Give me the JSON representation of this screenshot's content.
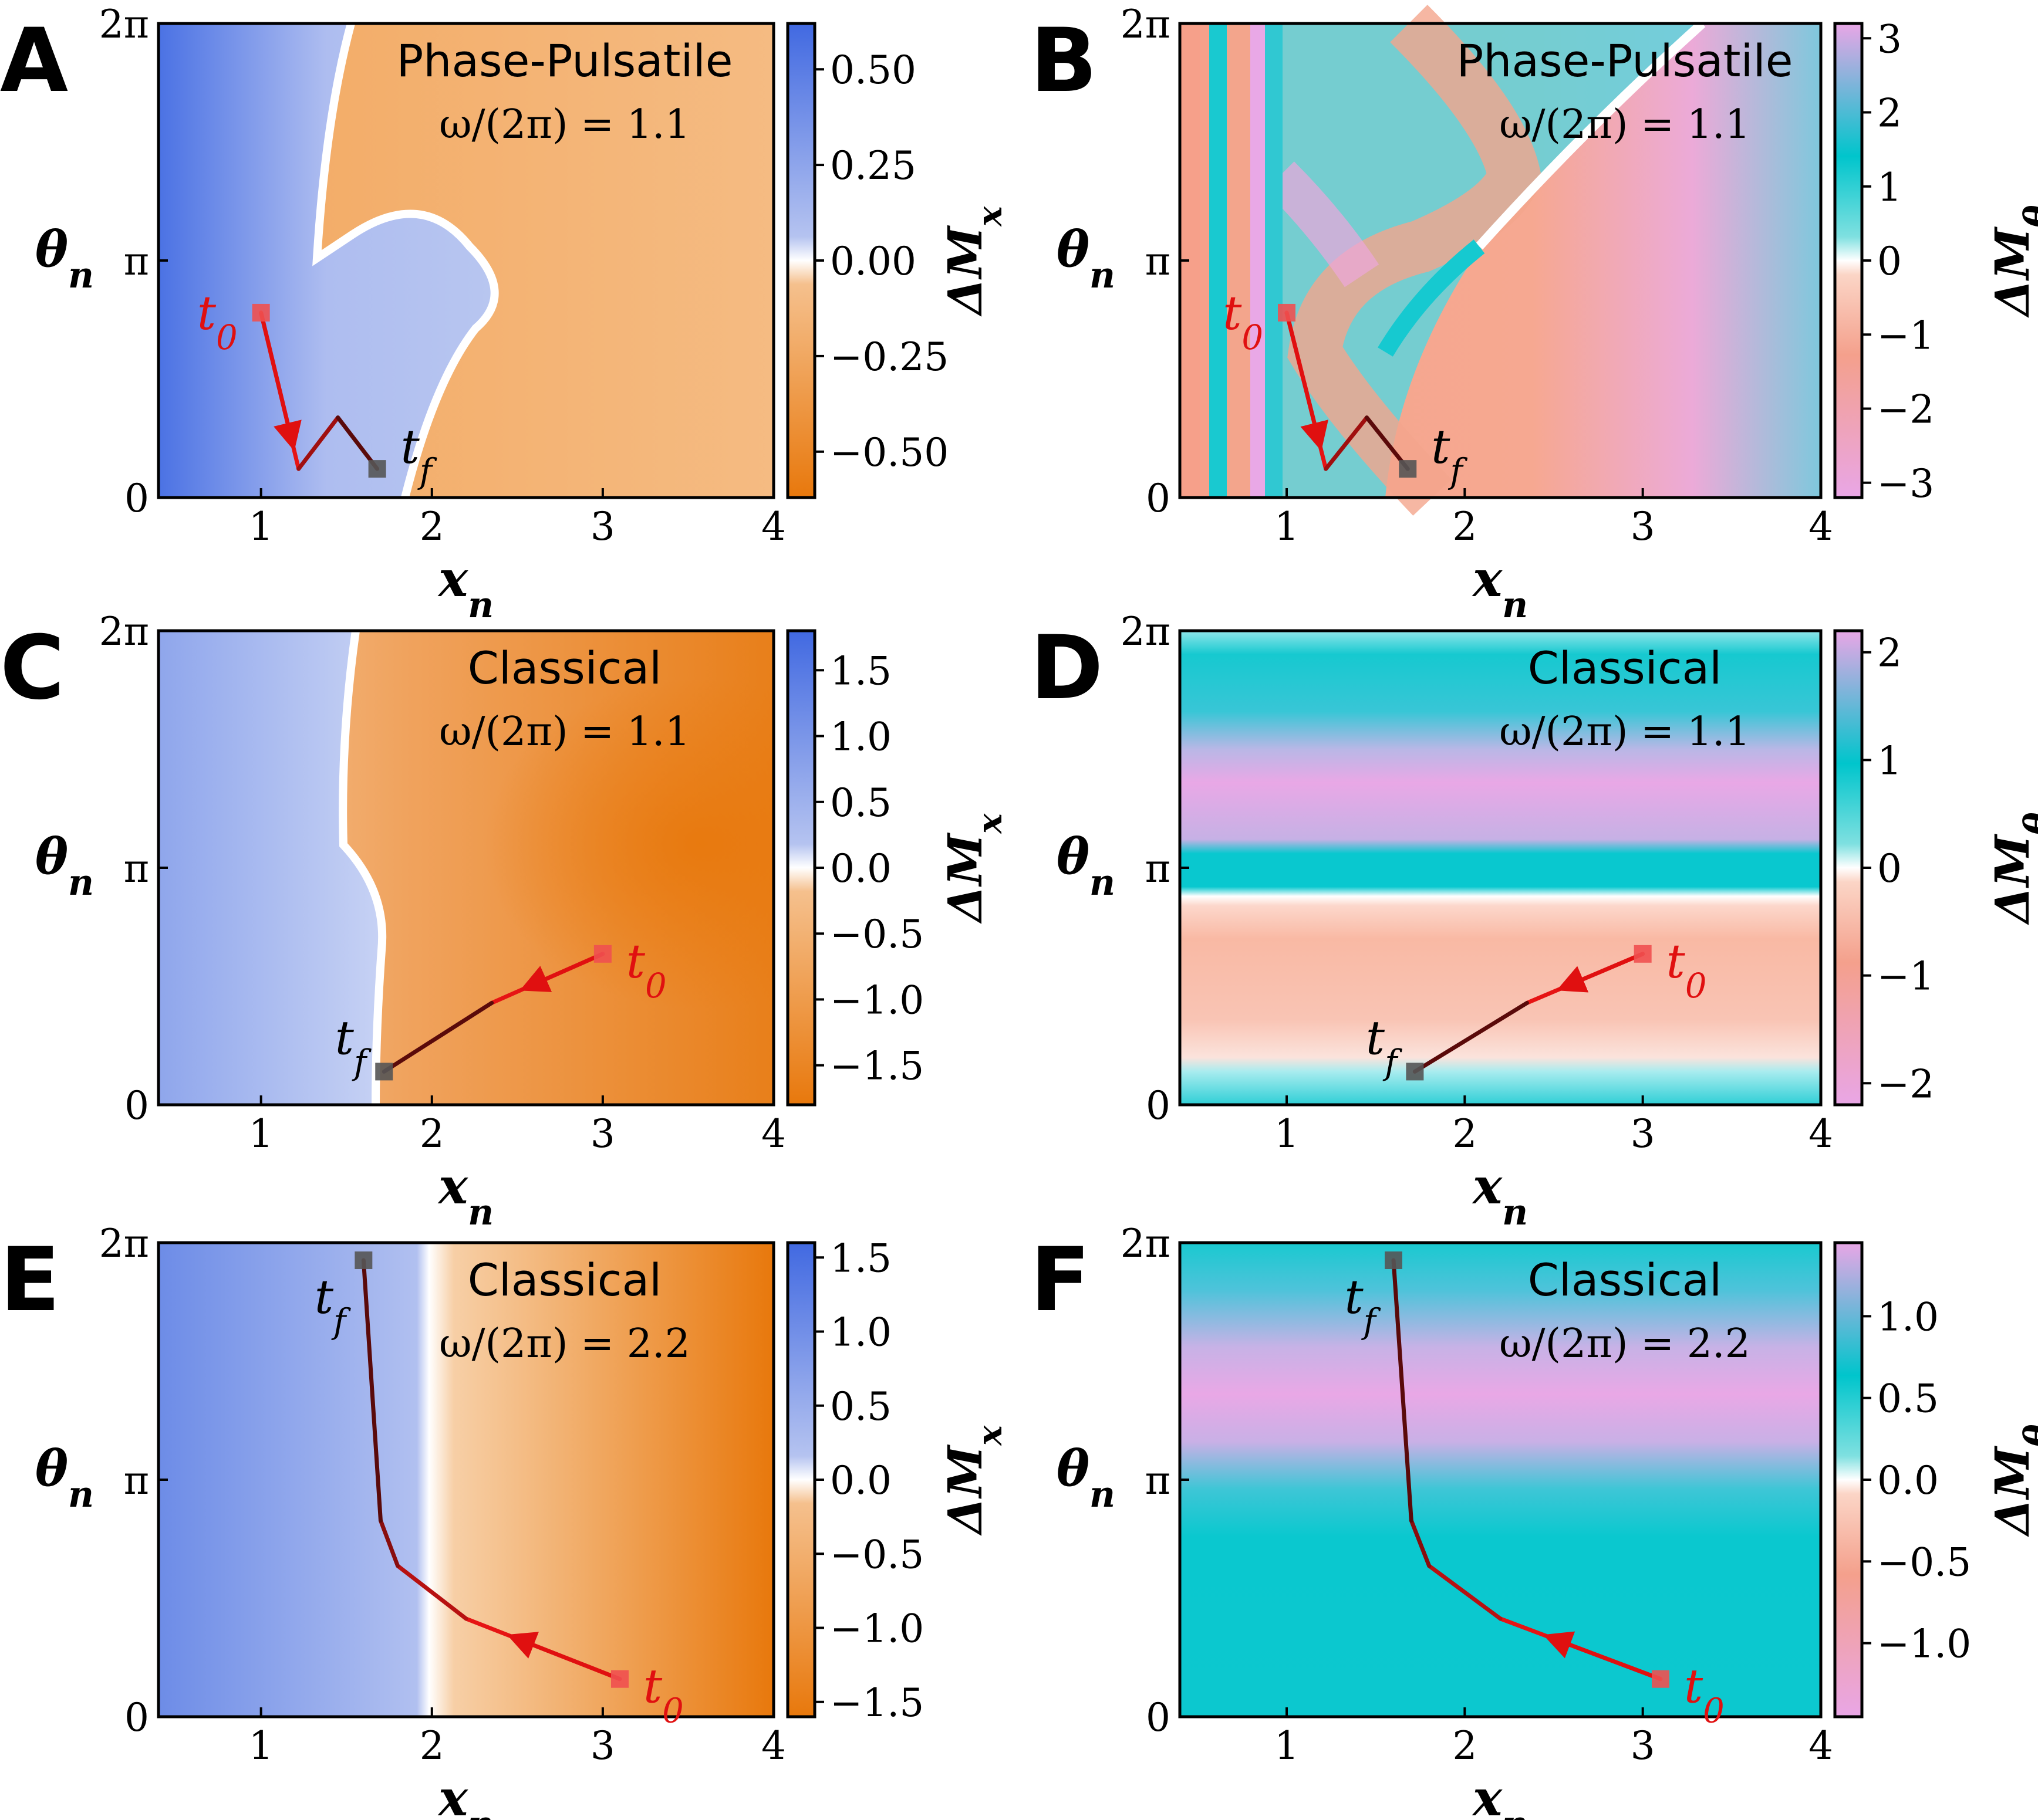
{
  "chart_data": [
    {
      "panel": "A",
      "type": "heatmap",
      "model": "Phase-Pulsatile",
      "freq_label": "ω/(2π) = 1.1",
      "xlabel": "x_n",
      "ylabel": "θ_n",
      "cbar_label": "ΔM_x",
      "cmap": "blue-orange",
      "xlim": [
        0.4,
        4
      ],
      "ylim": [
        0,
        6.2832
      ],
      "xticks": [
        "1",
        "2",
        "3",
        "4"
      ],
      "yticks": [
        "0",
        "π",
        "2π"
      ],
      "clim": [
        -0.62,
        0.62
      ],
      "cbar_ticks": [
        "0.50",
        "0.25",
        "0.00",
        "−0.25",
        "−0.50"
      ],
      "cbar_tick_values": [
        0.5,
        0.25,
        0,
        -0.25,
        -0.5
      ],
      "trajectory": {
        "x": [
          1.0,
          1.22,
          1.45,
          1.68
        ],
        "y": [
          2.45,
          0.38,
          1.06,
          0.38
        ],
        "t0": [
          1.0,
          2.45
        ],
        "tf": [
          1.68,
          0.38
        ],
        "color": "red-to-dark"
      },
      "start_label": "t_0",
      "end_label": "t_f"
    },
    {
      "panel": "B",
      "type": "heatmap",
      "model": "Phase-Pulsatile",
      "freq_label": "ω/(2π) = 1.1",
      "xlabel": "x_n",
      "ylabel": "θ_n",
      "cbar_label": "ΔM_θ",
      "cmap": "pink-cyan",
      "xlim": [
        0.4,
        4
      ],
      "ylim": [
        0,
        6.2832
      ],
      "xticks": [
        "1",
        "2",
        "3",
        "4"
      ],
      "yticks": [
        "0",
        "π",
        "2π"
      ],
      "clim": [
        -3.2,
        3.2
      ],
      "cbar_ticks": [
        "3",
        "2",
        "1",
        "0",
        "−1",
        "−2",
        "−3"
      ],
      "cbar_tick_values": [
        3,
        2,
        1,
        0,
        -1,
        -2,
        -3
      ],
      "trajectory": {
        "x": [
          1.0,
          1.22,
          1.45,
          1.68
        ],
        "y": [
          2.45,
          0.38,
          1.06,
          0.38
        ],
        "t0": [
          1.0,
          2.45
        ],
        "tf": [
          1.68,
          0.38
        ]
      },
      "start_label": "t_0",
      "end_label": "t_f"
    },
    {
      "panel": "C",
      "type": "heatmap",
      "model": "Classical",
      "freq_label": "ω/(2π) = 1.1",
      "xlabel": "x_n",
      "ylabel": "θ_n",
      "cbar_label": "ΔM_x",
      "cmap": "blue-orange",
      "xlim": [
        0.4,
        4
      ],
      "ylim": [
        0,
        6.2832
      ],
      "xticks": [
        "1",
        "2",
        "3",
        "4"
      ],
      "yticks": [
        "0",
        "π",
        "2π"
      ],
      "clim": [
        -1.8,
        1.8
      ],
      "cbar_ticks": [
        "1.5",
        "1.0",
        "0.5",
        "0.0",
        "−0.5",
        "−1.0",
        "−1.5"
      ],
      "cbar_tick_values": [
        1.5,
        1.0,
        0.5,
        0,
        -0.5,
        -1.0,
        -1.5
      ],
      "trajectory": {
        "x": [
          3.0,
          2.35,
          1.72
        ],
        "y": [
          2.0,
          1.35,
          0.44
        ],
        "t0": [
          3.0,
          2.0
        ],
        "tf": [
          1.72,
          0.44
        ]
      },
      "start_label": "t_0",
      "end_label": "t_f"
    },
    {
      "panel": "D",
      "type": "heatmap",
      "model": "Classical",
      "freq_label": "ω/(2π) = 1.1",
      "xlabel": "x_n",
      "ylabel": "θ_n",
      "cbar_label": "ΔM_θ",
      "cmap": "pink-cyan",
      "xlim": [
        0.4,
        4
      ],
      "ylim": [
        0,
        6.2832
      ],
      "xticks": [
        "1",
        "2",
        "3",
        "4"
      ],
      "yticks": [
        "0",
        "π",
        "2π"
      ],
      "clim": [
        -2.2,
        2.2
      ],
      "cbar_ticks": [
        "2",
        "1",
        "0",
        "−1",
        "−2"
      ],
      "cbar_tick_values": [
        2,
        1,
        0,
        -1,
        -2
      ],
      "trajectory": {
        "x": [
          3.0,
          2.35,
          1.72
        ],
        "y": [
          2.0,
          1.35,
          0.44
        ],
        "t0": [
          3.0,
          2.0
        ],
        "tf": [
          1.72,
          0.44
        ]
      },
      "start_label": "t_0",
      "end_label": "t_f"
    },
    {
      "panel": "E",
      "type": "heatmap",
      "model": "Classical",
      "freq_label": "ω/(2π) = 2.2",
      "xlabel": "x_n",
      "ylabel": "θ_n",
      "cbar_label": "ΔM_x",
      "cmap": "blue-orange",
      "xlim": [
        0.4,
        4
      ],
      "ylim": [
        0,
        6.2832
      ],
      "xticks": [
        "1",
        "2",
        "3",
        "4"
      ],
      "yticks": [
        "0",
        "π",
        "2π"
      ],
      "clim": [
        -1.6,
        1.6
      ],
      "cbar_ticks": [
        "1.5",
        "1.0",
        "0.5",
        "0.0",
        "−0.5",
        "−1.0",
        "−1.5"
      ],
      "cbar_tick_values": [
        1.5,
        1.0,
        0.5,
        0,
        -0.5,
        -1.0,
        -1.5
      ],
      "trajectory": {
        "x": [
          3.1,
          2.2,
          1.8,
          1.7,
          1.6
        ],
        "y": [
          0.5,
          1.3,
          2.0,
          2.6,
          6.05
        ],
        "t0": [
          3.1,
          0.5
        ],
        "tf": [
          1.6,
          6.05
        ]
      },
      "start_label": "t_0",
      "end_label": "t_f"
    },
    {
      "panel": "F",
      "type": "heatmap",
      "model": "Classical",
      "freq_label": "ω/(2π) = 2.2",
      "xlabel": "x_n",
      "ylabel": "θ_n",
      "cbar_label": "ΔM_θ",
      "cmap": "pink-cyan",
      "xlim": [
        0.4,
        4
      ],
      "ylim": [
        0,
        6.2832
      ],
      "xticks": [
        "1",
        "2",
        "3",
        "4"
      ],
      "yticks": [
        "0",
        "π",
        "2π"
      ],
      "clim": [
        -1.45,
        1.45
      ],
      "cbar_ticks": [
        "1.0",
        "0.5",
        "0.0",
        "−0.5",
        "−1.0"
      ],
      "cbar_tick_values": [
        1.0,
        0.5,
        0,
        -0.5,
        -1.0
      ],
      "trajectory": {
        "x": [
          3.1,
          2.2,
          1.8,
          1.7,
          1.6
        ],
        "y": [
          0.5,
          1.3,
          2.0,
          2.6,
          6.05
        ],
        "t0": [
          3.1,
          0.5
        ],
        "tf": [
          1.6,
          6.05
        ]
      },
      "start_label": "t_0",
      "end_label": "t_f"
    }
  ]
}
